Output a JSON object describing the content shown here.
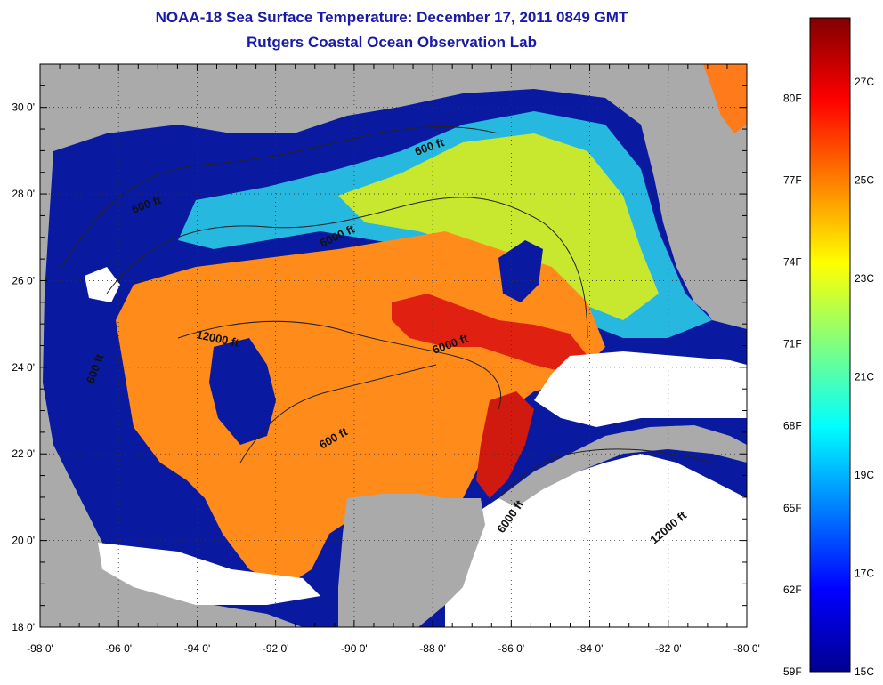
{
  "title": {
    "line1": "NOAA-18 Sea Surface Temperature:  December 17, 2011 0849 GMT",
    "line2": "Rutgers Coastal Ocean Observation Lab"
  },
  "map": {
    "lon_range": [
      -98,
      -80
    ],
    "lat_range": [
      18,
      31
    ],
    "x_ticks": [
      {
        "value": -98,
        "label": "-98 0'"
      },
      {
        "value": -96,
        "label": "-96 0'"
      },
      {
        "value": -94,
        "label": "-94 0'"
      },
      {
        "value": -92,
        "label": "-92 0'"
      },
      {
        "value": -90,
        "label": "-90 0'"
      },
      {
        "value": -88,
        "label": "-88 0'"
      },
      {
        "value": -86,
        "label": "-86 0'"
      },
      {
        "value": -84,
        "label": "-84 0'"
      },
      {
        "value": -82,
        "label": "-82 0'"
      },
      {
        "value": -80,
        "label": "-80 0'"
      }
    ],
    "y_ticks": [
      {
        "value": 18,
        "label": "18 0'"
      },
      {
        "value": 20,
        "label": "20 0'"
      },
      {
        "value": 22,
        "label": "22 0'"
      },
      {
        "value": 24,
        "label": "24 0'"
      },
      {
        "value": 26,
        "label": "26 0'"
      },
      {
        "value": 28,
        "label": "28 0'"
      },
      {
        "value": 30,
        "label": "30 0'"
      }
    ],
    "contour_labels": [
      "600 ft",
      "600 ft",
      "6000 ft",
      "12000 ft",
      "600 ft",
      "6000 ft",
      "600 ft",
      "6000 ft",
      "12000 ft"
    ],
    "colors": {
      "land": "#aaaaaa",
      "cloud": "#ffffff",
      "frame": "#000000"
    }
  },
  "colorbar": {
    "min_c": 15,
    "max_c": 28.3,
    "fahrenheit_labels": [
      {
        "value": 80,
        "label": "80F"
      },
      {
        "value": 77,
        "label": "77F"
      },
      {
        "value": 74,
        "label": "74F"
      },
      {
        "value": 71,
        "label": "71F"
      },
      {
        "value": 68,
        "label": "68F"
      },
      {
        "value": 65,
        "label": "65F"
      },
      {
        "value": 62,
        "label": "62F"
      },
      {
        "value": 59,
        "label": "59F"
      }
    ],
    "celsius_labels": [
      {
        "value": 27,
        "label": "27C"
      },
      {
        "value": 25,
        "label": "25C"
      },
      {
        "value": 23,
        "label": "23C"
      },
      {
        "value": 21,
        "label": "21C"
      },
      {
        "value": 19,
        "label": "19C"
      },
      {
        "value": 17,
        "label": "17C"
      },
      {
        "value": 15,
        "label": "15C"
      }
    ]
  }
}
